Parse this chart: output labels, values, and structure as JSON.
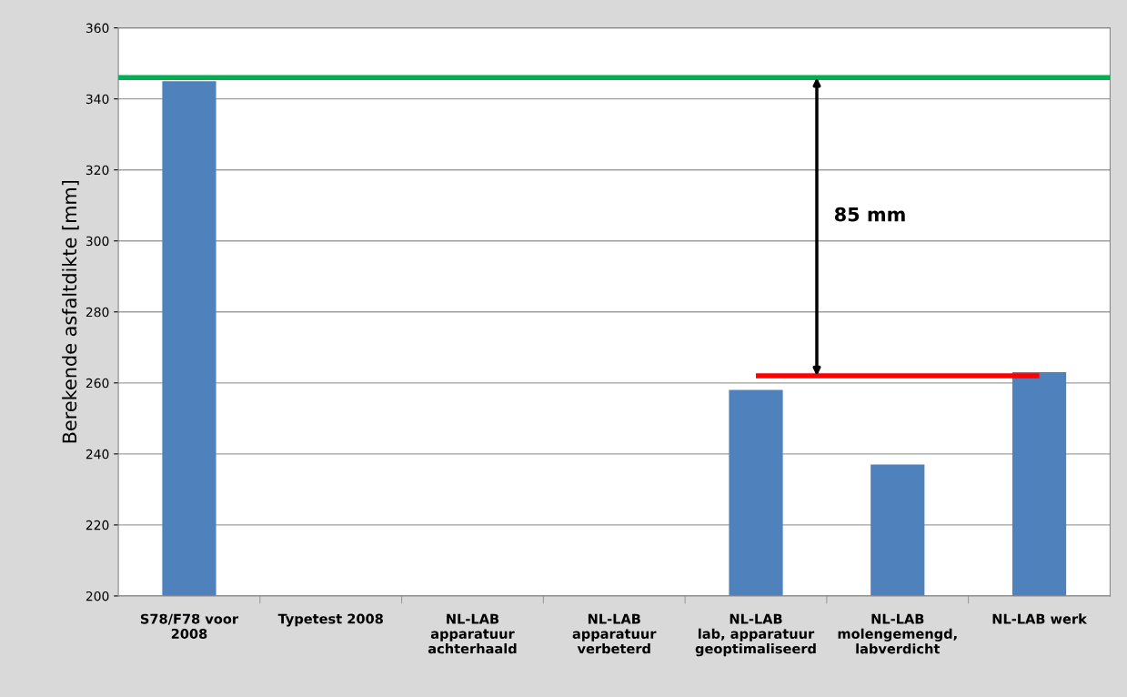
{
  "chart_data": {
    "type": "bar",
    "ylabel": "Berekende asfaltdikte [mm]",
    "categories": [
      "S78/F78 voor\n2008",
      "Typetest 2008",
      "NL-LAB\napparatuur\nachterhaald",
      "NL-LAB\napparatuur\nverbeterd",
      "NL-LAB\nlab, apparatuur\ngeoptimaliseerd",
      "NL-LAB\nmolengemengd,\nlabverdicht",
      "NL-LAB werk"
    ],
    "series": [
      {
        "color": "#4f81bd",
        "values": [
          345,
          null,
          null,
          null,
          258,
          237,
          263
        ]
      },
      {
        "type": "line",
        "color": "#ff0000",
        "values": [
          null,
          null,
          null,
          null,
          262,
          262,
          262
        ]
      }
    ],
    "ref_lines": [
      {
        "axis": "y",
        "value": 346,
        "color": "#00b050"
      }
    ],
    "annotations": [
      "85 mm"
    ],
    "ylim": [
      200,
      360
    ],
    "yticks": [
      200,
      220,
      240,
      260,
      280,
      300,
      320,
      340,
      360
    ],
    "grid": "y",
    "legend": false
  }
}
